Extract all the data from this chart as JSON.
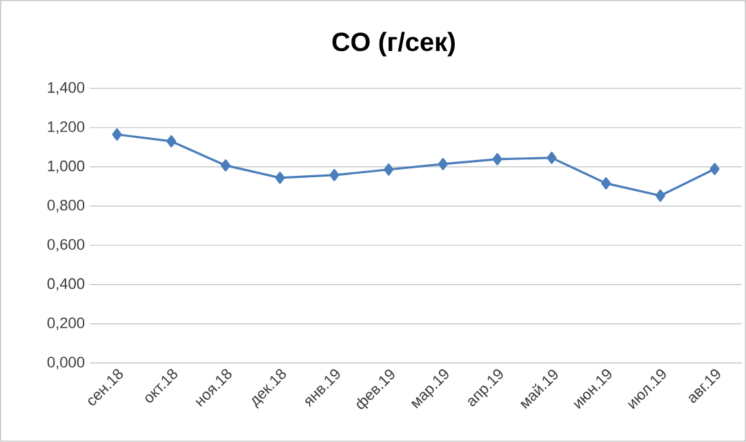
{
  "chart_data": {
    "type": "line",
    "title": "CO (г/сек)",
    "categories": [
      "сен.18",
      "окт.18",
      "ноя.18",
      "дек.18",
      "янв.19",
      "фев.19",
      "мар.19",
      "апр.19",
      "май.19",
      "июн.19",
      "июл.19",
      "авг.19"
    ],
    "series": [
      {
        "color": "#4a7ebb",
        "values": [
          1.165,
          1.13,
          1.007,
          0.944,
          0.958,
          0.986,
          1.014,
          1.039,
          1.046,
          0.916,
          0.853,
          0.989
        ]
      }
    ],
    "ylim": [
      0,
      1.4
    ],
    "yticks": [
      {
        "value": 0,
        "label": "0,000"
      },
      {
        "value": 0.2,
        "label": "0,200"
      },
      {
        "value": 0.4,
        "label": "0,400"
      },
      {
        "value": 0.6,
        "label": "0,600"
      },
      {
        "value": 0.8,
        "label": "0,800"
      },
      {
        "value": 1.0,
        "label": "1,000"
      },
      {
        "value": 1.2,
        "label": "1,200"
      },
      {
        "value": 1.4,
        "label": "1,400"
      }
    ],
    "grid": "y",
    "marker": "diamond",
    "line_style": "solid"
  }
}
